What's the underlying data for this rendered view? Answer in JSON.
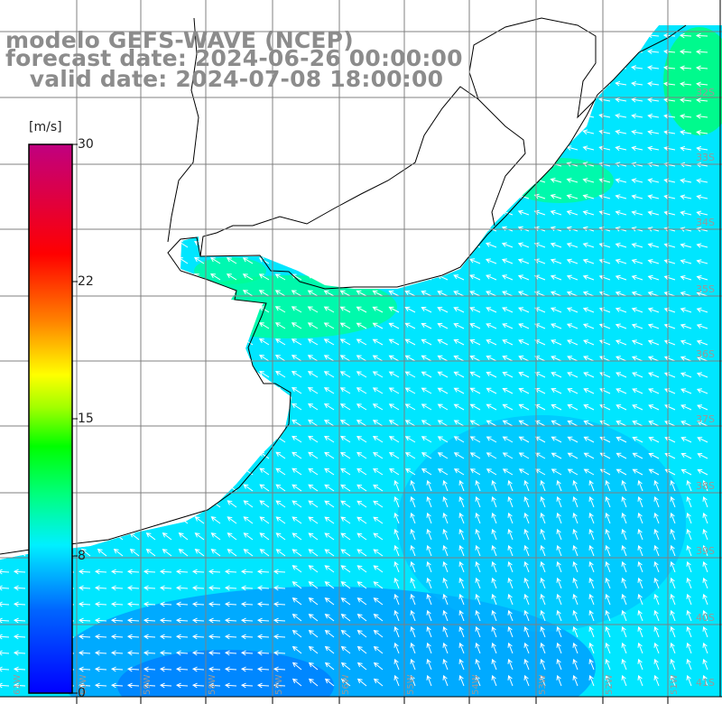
{
  "title": {
    "line1": "modelo GEFS-WAVE (NCEP)",
    "line2": "forecast date: 2024-06-26 00:00:00",
    "line3": "   valid date: 2024-07-08 18:00:00"
  },
  "colorbar": {
    "unit": "[m/s]",
    "ticks": [
      "30",
      "22",
      "15",
      "8",
      "0"
    ],
    "range": [
      0,
      30
    ],
    "colors": [
      "#0000ff",
      "#0096ff",
      "#00f0ff",
      "#00ff80",
      "#00ff00",
      "#a0ff00",
      "#ffff00",
      "#ff8000",
      "#ff0000",
      "#e00070",
      "#c00080"
    ]
  },
  "latitude_labels": [
    "32S",
    "33S",
    "34S",
    "35S",
    "36S",
    "37S",
    "38S",
    "39S",
    "40S",
    "41S"
  ],
  "longitude_labels": [
    "61W",
    "60W",
    "59W",
    "58W",
    "57W",
    "56W",
    "55W",
    "54W",
    "53W",
    "52W",
    "51W"
  ],
  "colors": {
    "land": "#ffffff",
    "coast": "#000000",
    "grid": "#808080",
    "arrows": "#ffffff",
    "title": "#8c8c8c"
  }
}
